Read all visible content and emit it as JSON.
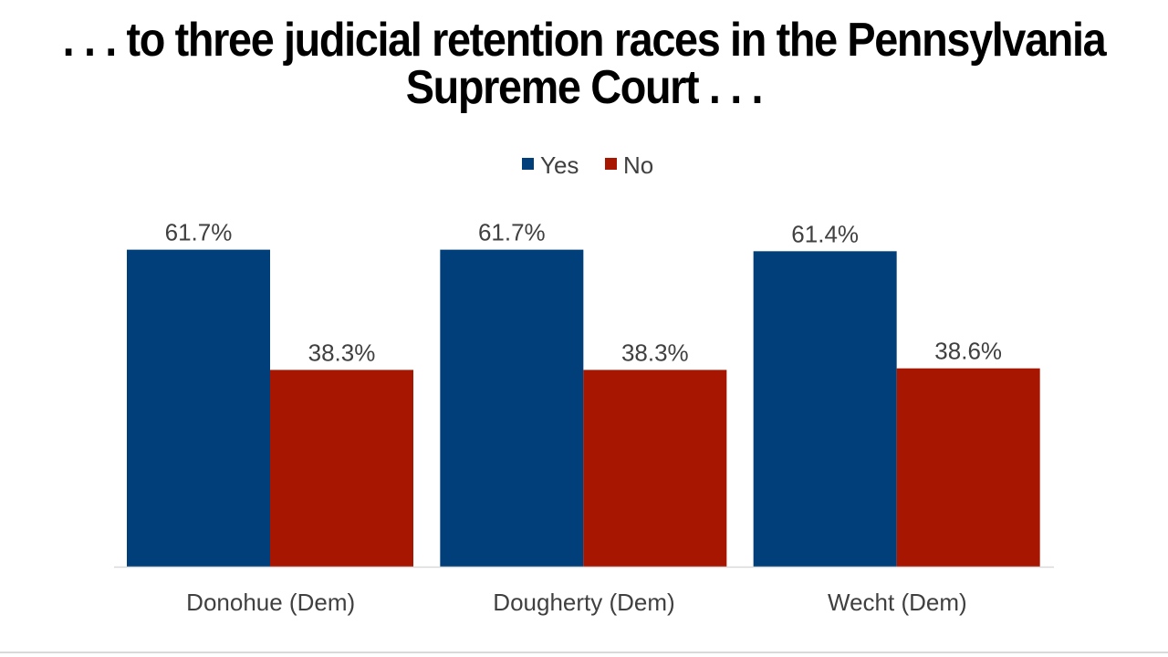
{
  "chart_data": {
    "type": "bar",
    "title": ". . . to three judicial retention races in the Pennsylvania Supreme Court . . .",
    "title_lines": [
      ". . . to three judicial retention races in the Pennsylvania",
      "Supreme Court . . ."
    ],
    "categories": [
      "Donohue (Dem)",
      "Dougherty (Dem)",
      "Wecht (Dem)"
    ],
    "series": [
      {
        "name": "Yes",
        "color": "#003f7a",
        "values": [
          61.7,
          61.7,
          61.4
        ],
        "labels": [
          "61.7%",
          "61.7%",
          "61.4%"
        ]
      },
      {
        "name": "No",
        "color": "#a61600",
        "values": [
          38.3,
          38.3,
          38.6
        ],
        "labels": [
          "38.3%",
          "38.3%",
          "38.6%"
        ]
      }
    ],
    "xlabel": "",
    "ylabel": "",
    "ylim": [
      0,
      70
    ],
    "grid": false,
    "legend": "top-center"
  }
}
